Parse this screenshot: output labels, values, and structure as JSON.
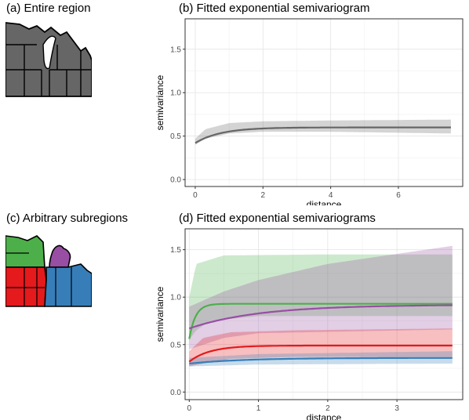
{
  "panel_a": {
    "title": "(a) Entire region"
  },
  "panel_b": {
    "title": "(b) Fitted exponential semivariogram"
  },
  "panel_c": {
    "title": "(c) Arbitrary subregions"
  },
  "panel_d": {
    "title": "(d) Fitted exponential semivariograms"
  },
  "maps": {
    "entire_region_fill": "#666666",
    "subregion_colors": {
      "northwest": "#4daf4a",
      "michigan": "#984ea3",
      "southwest": "#e41a1c",
      "southeast": "#377eb8"
    }
  },
  "chart_data": [
    {
      "type": "line",
      "title": "(b) Fitted exponential semivariogram",
      "xlabel": "distance",
      "ylabel": "semivariance",
      "xlim": [
        -0.3,
        7.9
      ],
      "ylim": [
        -0.08,
        1.85
      ],
      "x_ticks": [
        "0",
        "2",
        "4",
        "6"
      ],
      "y_ticks": [
        "0.0",
        "0.5",
        "1.0",
        "1.5"
      ],
      "grid": true,
      "series": [
        {
          "color": "#666666",
          "nugget": 0.42,
          "sill": 0.6,
          "range": 0.75,
          "x_max": 7.55,
          "band_lower": [
            [
              0,
              0.4
            ],
            [
              0.3,
              0.47
            ],
            [
              1,
              0.53
            ],
            [
              2,
              0.55
            ],
            [
              4,
              0.55
            ],
            [
              7.55,
              0.53
            ]
          ],
          "band_upper": [
            [
              0,
              0.47
            ],
            [
              0.3,
              0.58
            ],
            [
              1,
              0.65
            ],
            [
              2,
              0.67
            ],
            [
              4,
              0.68
            ],
            [
              7.55,
              0.69
            ]
          ]
        }
      ]
    },
    {
      "type": "line",
      "title": "(d) Fitted exponential semivariograms",
      "xlabel": "distance",
      "ylabel": "semivariance",
      "xlim": [
        -0.06,
        3.95
      ],
      "ylim": [
        -0.08,
        1.72
      ],
      "x_ticks": [
        "0",
        "1",
        "2",
        "3"
      ],
      "y_ticks": [
        "0.0",
        "0.5",
        "1.0",
        "1.5"
      ],
      "grid": true,
      "series": [
        {
          "color": "#4daf4a",
          "nugget": 0.56,
          "sill": 0.93,
          "range": 0.09,
          "x_max": 3.8,
          "band_lower": [
            [
              0,
              0.55
            ],
            [
              0.1,
              0.65
            ],
            [
              0.3,
              0.75
            ],
            [
              1,
              0.8
            ],
            [
              3.8,
              0.8
            ]
          ],
          "band_upper": [
            [
              0,
              1.0
            ],
            [
              0.1,
              1.35
            ],
            [
              0.5,
              1.44
            ],
            [
              2,
              1.45
            ],
            [
              3.8,
              1.45
            ]
          ]
        },
        {
          "color": "#984ea3",
          "nugget": 0.67,
          "sill": 0.92,
          "range": 1.0,
          "x_max": 3.8,
          "band_lower": [
            [
              0,
              0.45
            ],
            [
              0.5,
              0.57
            ],
            [
              1,
              0.62
            ],
            [
              3.8,
              0.66
            ]
          ],
          "band_upper": [
            [
              0,
              0.9
            ],
            [
              0.5,
              1.06
            ],
            [
              1,
              1.18
            ],
            [
              2,
              1.35
            ],
            [
              3.8,
              1.54
            ]
          ]
        },
        {
          "color": "#e41a1c",
          "nugget": 0.32,
          "sill": 0.49,
          "range": 0.3,
          "x_max": 3.8,
          "band_lower": [
            [
              0,
              0.27
            ],
            [
              0.2,
              0.3
            ],
            [
              0.6,
              0.35
            ],
            [
              1.5,
              0.37
            ],
            [
              3.8,
              0.37
            ]
          ],
          "band_upper": [
            [
              0,
              0.43
            ],
            [
              0.2,
              0.57
            ],
            [
              0.6,
              0.63
            ],
            [
              1.5,
              0.65
            ],
            [
              3.8,
              0.67
            ]
          ]
        },
        {
          "color": "#377eb8",
          "nugget": 0.3,
          "sill": 0.36,
          "range": 0.8,
          "x_max": 3.8,
          "band_lower": [
            [
              0,
              0.27
            ],
            [
              1,
              0.29
            ],
            [
              3.8,
              0.3
            ]
          ],
          "band_upper": [
            [
              0,
              0.36
            ],
            [
              1,
              0.4
            ],
            [
              3.8,
              0.43
            ]
          ]
        }
      ]
    }
  ]
}
